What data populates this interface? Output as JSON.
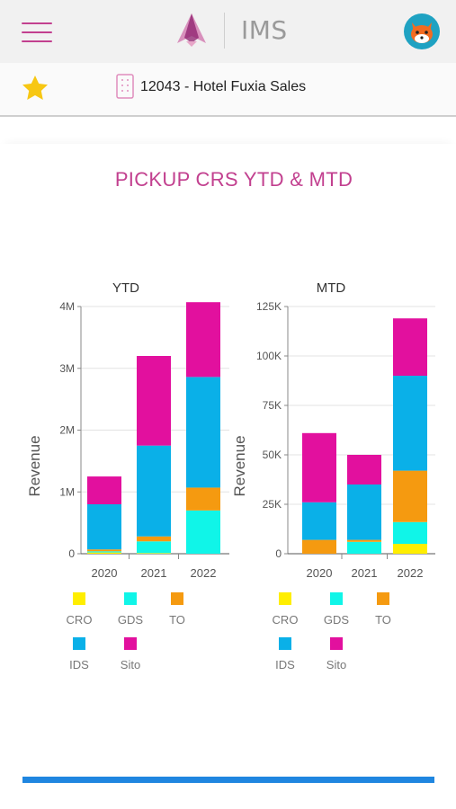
{
  "header": {
    "app_name": "IMS",
    "menu_icon": "hamburger-menu-icon",
    "avatar_icon": "fox-avatar-icon",
    "brand_color": "#c2408f"
  },
  "hotel_bar": {
    "favorite_icon": "star-icon",
    "hotel_icon": "building-icon",
    "hotel_label": "12043 - Hotel Fuxia Sales"
  },
  "page": {
    "title": "PICKUP CRS YTD & MTD"
  },
  "chart_data": [
    {
      "type": "bar",
      "stacked": true,
      "title": "YTD",
      "ylabel": "Revenue",
      "categories": [
        "2020",
        "2021",
        "2022"
      ],
      "ylim": [
        0,
        4000000
      ],
      "yticks": [
        0,
        1000000,
        2000000,
        3000000,
        4000000
      ],
      "ytick_labels": [
        "0",
        "1M",
        "2M",
        "3M",
        "4M"
      ],
      "grid": true,
      "legend": "bottom",
      "series": [
        {
          "name": "CRO",
          "color": "#ffee00",
          "values": [
            20000,
            10000,
            0
          ]
        },
        {
          "name": "GDS",
          "color": "#10f5e8",
          "values": [
            20000,
            190000,
            700000
          ]
        },
        {
          "name": "TO",
          "color": "#f59a10",
          "values": [
            30000,
            80000,
            370000
          ]
        },
        {
          "name": "IDS",
          "color": "#0ab0e8",
          "values": [
            730000,
            1470000,
            1790000
          ]
        },
        {
          "name": "Sito",
          "color": "#e2109e",
          "values": [
            450000,
            1450000,
            1210000
          ]
        }
      ]
    },
    {
      "type": "bar",
      "stacked": true,
      "title": "MTD",
      "ylabel": "Revenue",
      "categories": [
        "2020",
        "2021",
        "2022"
      ],
      "ylim": [
        0,
        125000
      ],
      "yticks": [
        0,
        25000,
        50000,
        75000,
        100000,
        125000
      ],
      "ytick_labels": [
        "0",
        "25K",
        "50K",
        "75K",
        "100K",
        "125K"
      ],
      "grid": true,
      "legend": "bottom",
      "series": [
        {
          "name": "CRO",
          "color": "#ffee00",
          "values": [
            0,
            0,
            5000
          ]
        },
        {
          "name": "GDS",
          "color": "#10f5e8",
          "values": [
            0,
            6000,
            11000
          ]
        },
        {
          "name": "TO",
          "color": "#f59a10",
          "values": [
            7000,
            1000,
            26000
          ]
        },
        {
          "name": "IDS",
          "color": "#0ab0e8",
          "values": [
            19000,
            28000,
            48000
          ]
        },
        {
          "name": "Sito",
          "color": "#e2109e",
          "values": [
            35000,
            15000,
            29000
          ]
        }
      ]
    }
  ]
}
